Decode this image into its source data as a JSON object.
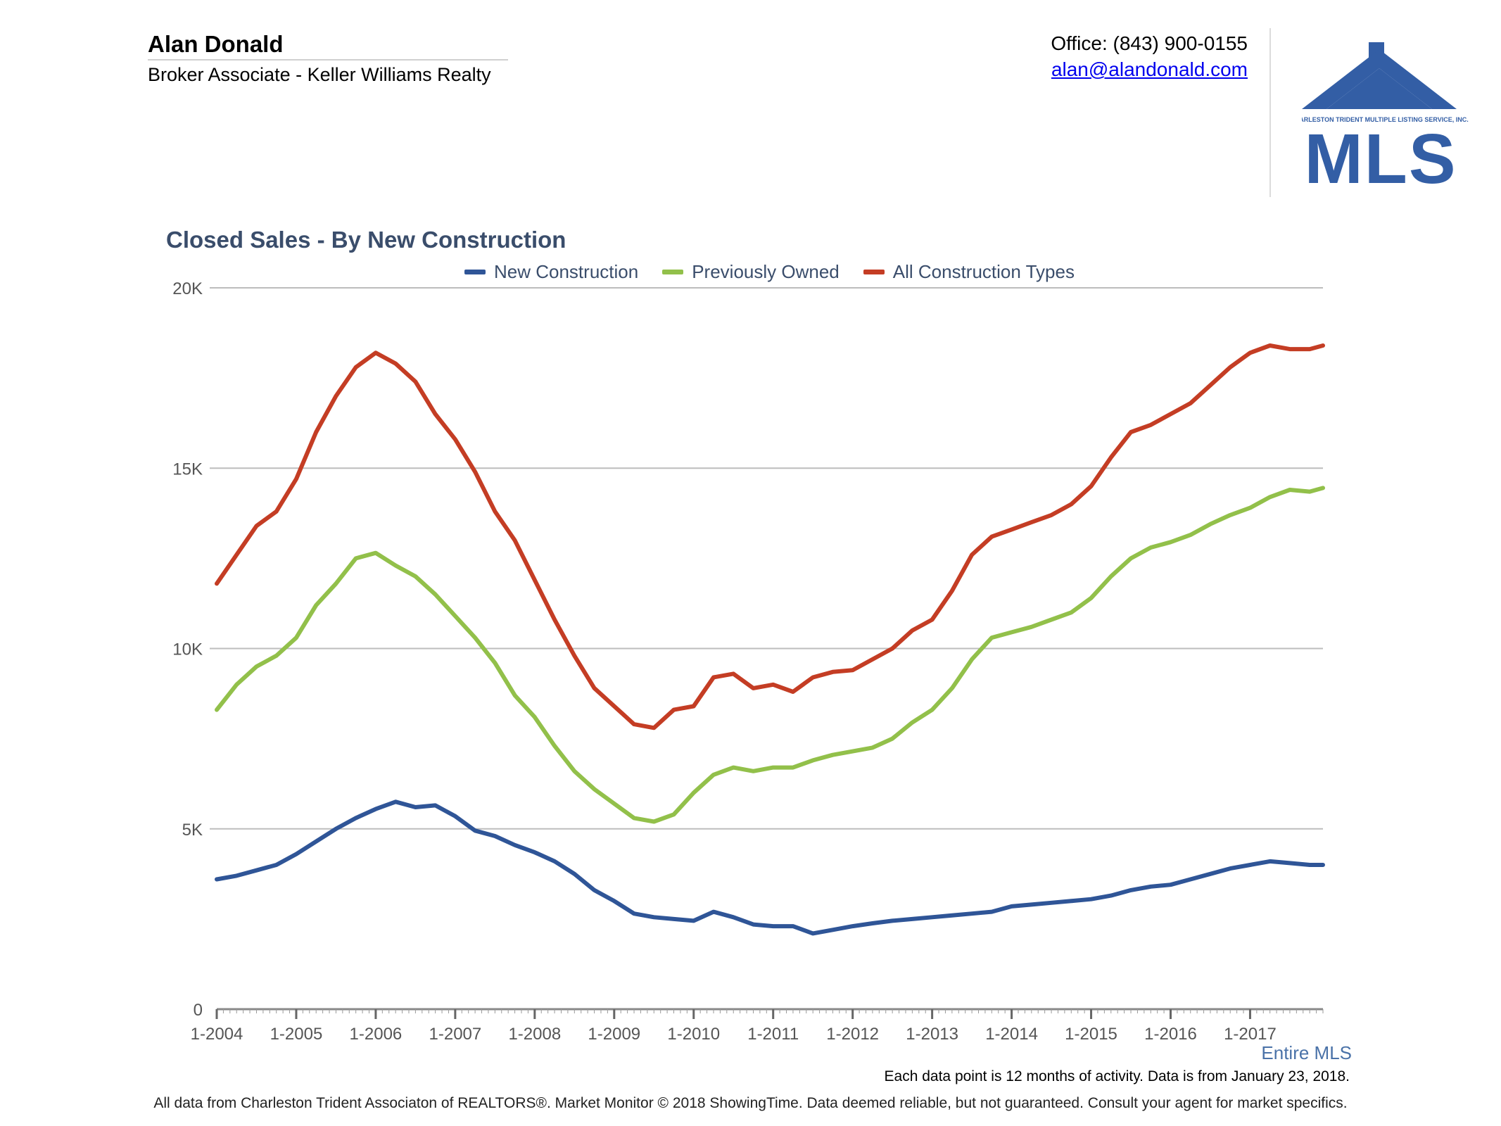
{
  "header": {
    "agent_name": "Alan Donald",
    "agent_title": "Broker Associate - Keller Williams Realty",
    "office": "Office: (843) 900-0155",
    "email": "alan@alandonald.com"
  },
  "logo": {
    "org_text": "CHARLESTON TRIDENT MULTIPLE LISTING SERVICE, INC.",
    "mark_text": "MLS",
    "color": "#335ea5"
  },
  "footer": {
    "region": "Entire MLS",
    "note": "Each data point is 12 months of activity. Data is from January 23, 2018.",
    "disclaimer": "All data from Charleston Trident Associaton of REALTORS®. Market Monitor © 2018 ShowingTime. Data deemed reliable, but not guaranteed. Consult your agent for market specifics."
  },
  "chart_data": {
    "type": "line",
    "title": "Closed Sales - By New Construction",
    "xlabel": "",
    "ylabel": "",
    "x_ticks": [
      "1-2004",
      "1-2005",
      "1-2006",
      "1-2007",
      "1-2008",
      "1-2009",
      "1-2010",
      "1-2011",
      "1-2012",
      "1-2013",
      "1-2014",
      "1-2015",
      "1-2016",
      "1-2017"
    ],
    "y_ticks": [
      0,
      5000,
      10000,
      15000,
      20000
    ],
    "y_tick_labels": [
      "0",
      "5K",
      "10K",
      "15K",
      "20K"
    ],
    "ylim": [
      0,
      20000
    ],
    "x_range": [
      "1-2004",
      "12-2017"
    ],
    "grid": "horizontal",
    "legend_position": "top-center",
    "series": [
      {
        "name": "New Construction",
        "color": "#2f5597",
        "x": [
          "1-2004",
          "4-2004",
          "7-2004",
          "10-2004",
          "1-2005",
          "4-2005",
          "7-2005",
          "10-2005",
          "1-2006",
          "4-2006",
          "7-2006",
          "10-2006",
          "1-2007",
          "4-2007",
          "7-2007",
          "10-2007",
          "1-2008",
          "4-2008",
          "7-2008",
          "10-2008",
          "1-2009",
          "4-2009",
          "7-2009",
          "10-2009",
          "1-2010",
          "4-2010",
          "7-2010",
          "10-2010",
          "1-2011",
          "4-2011",
          "7-2011",
          "10-2011",
          "1-2012",
          "4-2012",
          "7-2012",
          "10-2012",
          "1-2013",
          "4-2013",
          "7-2013",
          "10-2013",
          "1-2014",
          "4-2014",
          "7-2014",
          "10-2014",
          "1-2015",
          "4-2015",
          "7-2015",
          "10-2015",
          "1-2016",
          "4-2016",
          "7-2016",
          "10-2016",
          "1-2017",
          "4-2017",
          "7-2017",
          "10-2017",
          "12-2017"
        ],
        "values": [
          3600,
          3700,
          3850,
          4000,
          4300,
          4650,
          5000,
          5300,
          5550,
          5750,
          5600,
          5650,
          5350,
          4950,
          4800,
          4550,
          4350,
          4100,
          3750,
          3300,
          3000,
          2650,
          2550,
          2500,
          2450,
          2700,
          2550,
          2350,
          2300,
          2300,
          2100,
          2200,
          2300,
          2380,
          2450,
          2500,
          2550,
          2600,
          2650,
          2700,
          2850,
          2900,
          2950,
          3000,
          3050,
          3150,
          3300,
          3400,
          3450,
          3600,
          3750,
          3900,
          4000,
          4100,
          4050,
          4000,
          4000
        ]
      },
      {
        "name": "Previously Owned",
        "color": "#92c04a",
        "x": [
          "1-2004",
          "4-2004",
          "7-2004",
          "10-2004",
          "1-2005",
          "4-2005",
          "7-2005",
          "10-2005",
          "1-2006",
          "4-2006",
          "7-2006",
          "10-2006",
          "1-2007",
          "4-2007",
          "7-2007",
          "10-2007",
          "1-2008",
          "4-2008",
          "7-2008",
          "10-2008",
          "1-2009",
          "4-2009",
          "7-2009",
          "10-2009",
          "1-2010",
          "4-2010",
          "7-2010",
          "10-2010",
          "1-2011",
          "4-2011",
          "7-2011",
          "10-2011",
          "1-2012",
          "4-2012",
          "7-2012",
          "10-2012",
          "1-2013",
          "4-2013",
          "7-2013",
          "10-2013",
          "1-2014",
          "4-2014",
          "7-2014",
          "10-2014",
          "1-2015",
          "4-2015",
          "7-2015",
          "10-2015",
          "1-2016",
          "4-2016",
          "7-2016",
          "10-2016",
          "1-2017",
          "4-2017",
          "7-2017",
          "10-2017",
          "12-2017"
        ],
        "values": [
          8300,
          9000,
          9500,
          9800,
          10300,
          11200,
          11800,
          12500,
          12650,
          12300,
          12000,
          11500,
          10900,
          10300,
          9600,
          8700,
          8100,
          7300,
          6600,
          6100,
          5700,
          5300,
          5200,
          5400,
          6000,
          6500,
          6700,
          6600,
          6700,
          6700,
          6900,
          7050,
          7150,
          7250,
          7500,
          7950,
          8300,
          8900,
          9700,
          10300,
          10450,
          10600,
          10800,
          11000,
          11400,
          12000,
          12500,
          12800,
          12950,
          13150,
          13450,
          13700,
          13900,
          14200,
          14400,
          14350,
          14450
        ]
      },
      {
        "name": "All Construction Types",
        "color": "#c43d24",
        "x": [
          "1-2004",
          "4-2004",
          "7-2004",
          "10-2004",
          "1-2005",
          "4-2005",
          "7-2005",
          "10-2005",
          "1-2006",
          "4-2006",
          "7-2006",
          "10-2006",
          "1-2007",
          "4-2007",
          "7-2007",
          "10-2007",
          "1-2008",
          "4-2008",
          "7-2008",
          "10-2008",
          "1-2009",
          "4-2009",
          "7-2009",
          "10-2009",
          "1-2010",
          "4-2010",
          "7-2010",
          "10-2010",
          "1-2011",
          "4-2011",
          "7-2011",
          "10-2011",
          "1-2012",
          "4-2012",
          "7-2012",
          "10-2012",
          "1-2013",
          "4-2013",
          "7-2013",
          "10-2013",
          "1-2014",
          "4-2014",
          "7-2014",
          "10-2014",
          "1-2015",
          "4-2015",
          "7-2015",
          "10-2015",
          "1-2016",
          "4-2016",
          "7-2016",
          "10-2016",
          "1-2017",
          "4-2017",
          "7-2017",
          "10-2017",
          "12-2017"
        ],
        "values": [
          11800,
          12600,
          13400,
          13800,
          14700,
          16000,
          17000,
          17800,
          18200,
          17900,
          17400,
          16500,
          15800,
          14900,
          13800,
          13000,
          11900,
          10800,
          9800,
          8900,
          8400,
          7900,
          7800,
          8300,
          8400,
          9200,
          9300,
          8900,
          9000,
          8800,
          9200,
          9350,
          9400,
          9700,
          10000,
          10500,
          10800,
          11600,
          12600,
          13100,
          13300,
          13500,
          13700,
          14000,
          14500,
          15300,
          16000,
          16200,
          16500,
          16800,
          17300,
          17800,
          18200,
          18400,
          18300,
          18300,
          18400
        ]
      }
    ]
  }
}
